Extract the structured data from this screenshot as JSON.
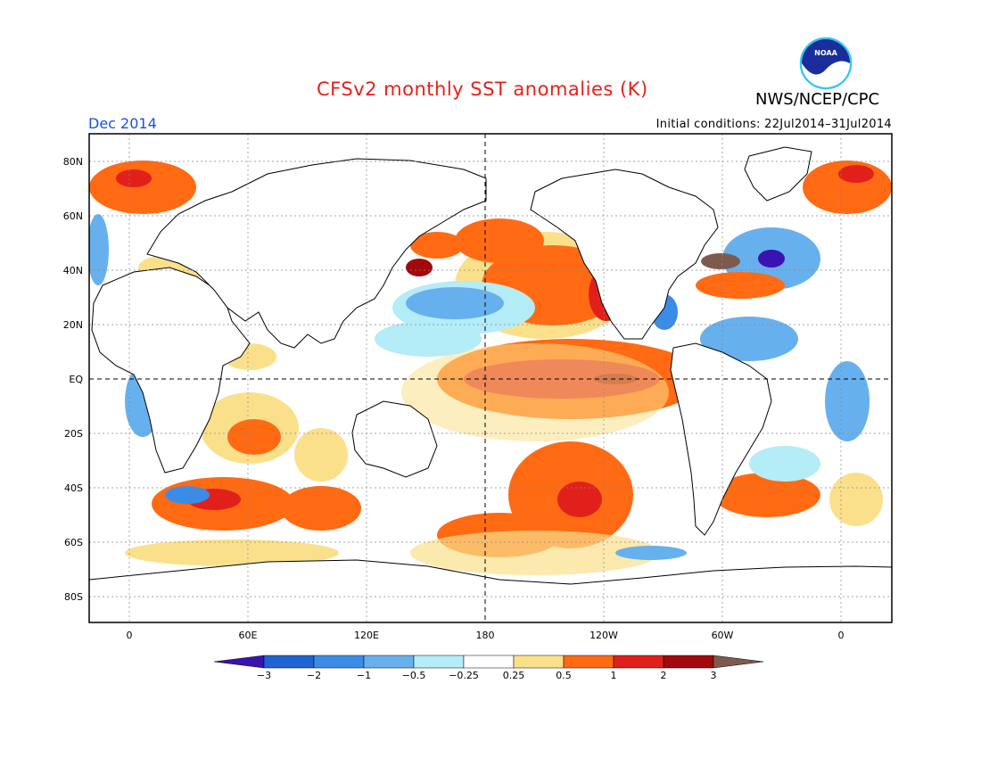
{
  "header": {
    "title": "CFSv2 monthly SST anomalies (K)",
    "agency": "NWS/NCEP/CPC",
    "logo_text": "NOAA",
    "month": "Dec 2014",
    "initial_conditions": "Initial conditions: 22Jul2014–31Jul2014"
  },
  "map": {
    "lat_labels": [
      "80N",
      "60N",
      "40N",
      "20N",
      "EQ",
      "20S",
      "40S",
      "60S",
      "80S"
    ],
    "lon_labels": [
      "0",
      "60E",
      "120E",
      "180",
      "120W",
      "60W",
      "0"
    ]
  },
  "colorbar": {
    "labels": [
      "−3",
      "−2",
      "−1",
      "−0.5",
      "−0.25",
      "0.25",
      "0.5",
      "1",
      "2",
      "3"
    ],
    "colors": [
      "#3b13b0",
      "#1e64d2",
      "#3b8ce6",
      "#67b0ee",
      "#b4ecf7",
      "#ffffff",
      "#fbe08c",
      "#ff6a13",
      "#e2201b",
      "#a3080c",
      "#7e5a4e"
    ]
  }
}
